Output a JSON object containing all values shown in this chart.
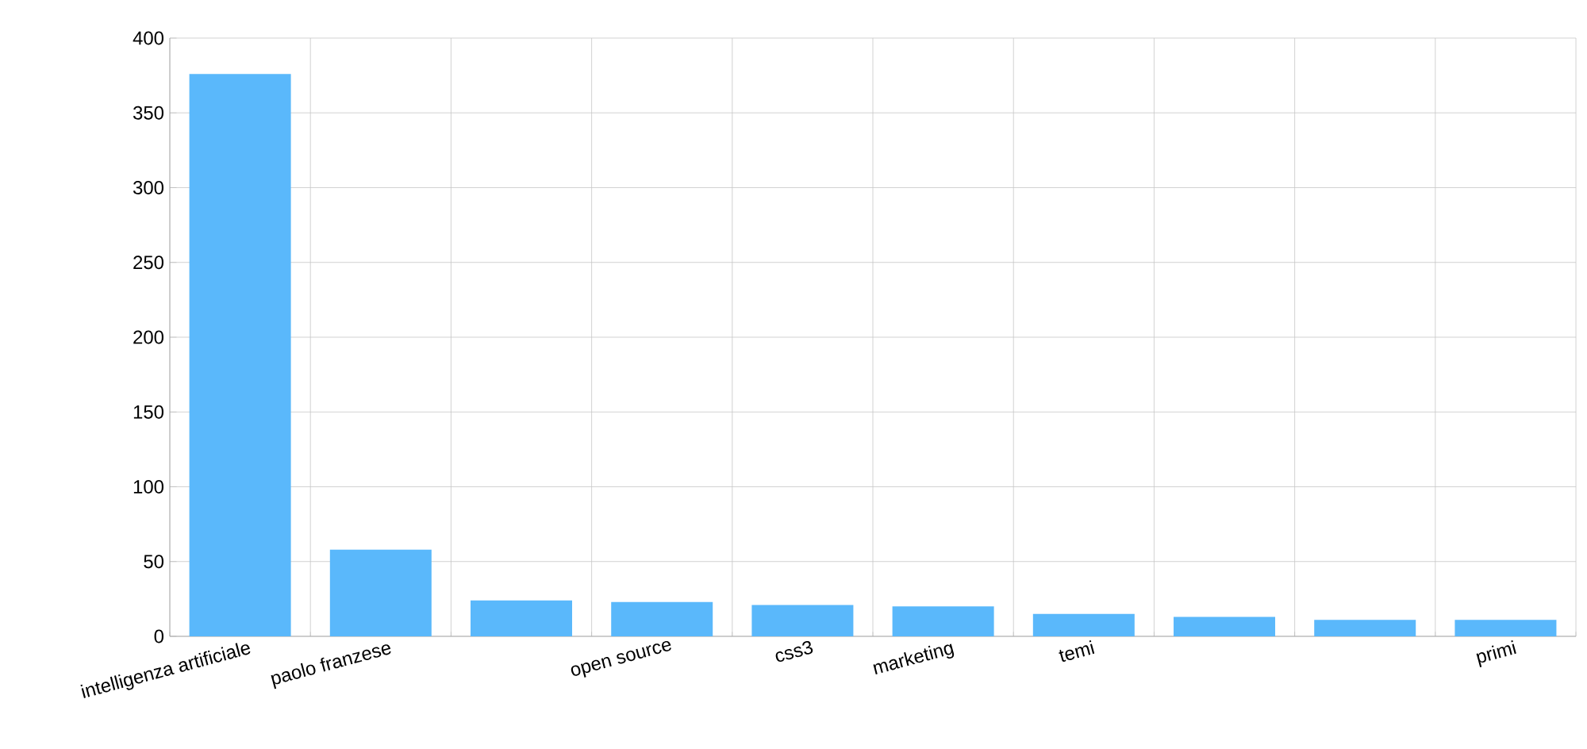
{
  "chart_data": {
    "type": "bar",
    "categories": [
      "intelligenza artificiale",
      "paolo franzese",
      null,
      "open source",
      "css3",
      "marketing",
      "temi",
      null,
      null,
      "primi"
    ],
    "values": [
      376,
      58,
      24,
      23,
      21,
      20,
      15,
      13,
      11,
      11
    ],
    "color": "#5ab8fb",
    "ylim": [
      0,
      400
    ],
    "yticks": [
      0,
      50,
      100,
      150,
      200,
      250,
      300,
      350,
      400
    ],
    "grid": true
  }
}
